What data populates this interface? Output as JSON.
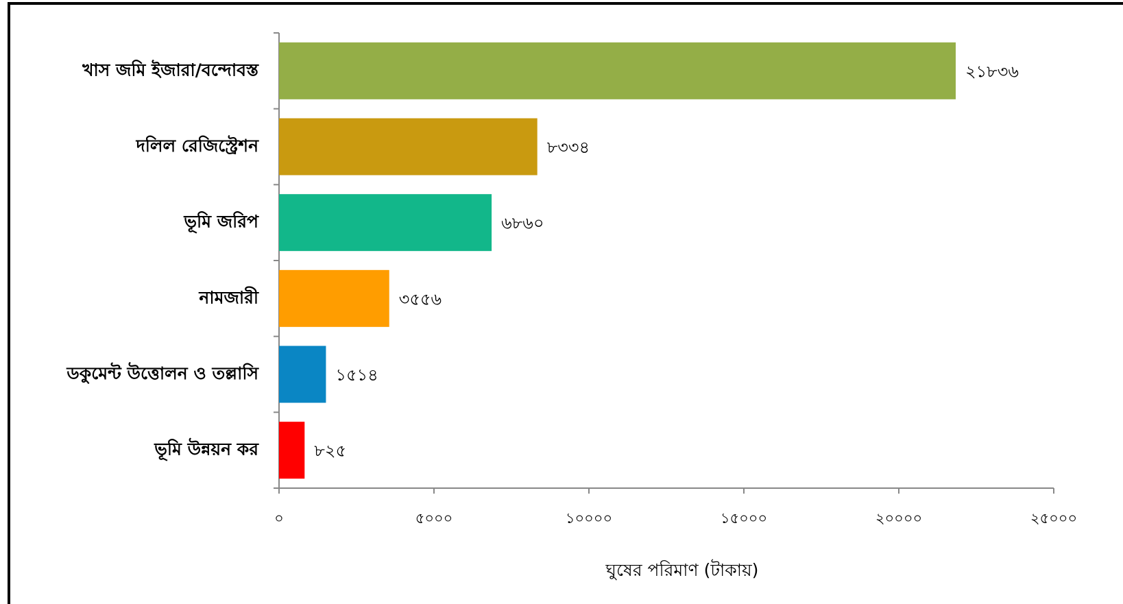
{
  "chart_data": {
    "type": "bar",
    "orientation": "horizontal",
    "categories": [
      "খাস জমি ইজারা/বন্দোবস্ত",
      "দলিল রেজিস্ট্রেশন",
      "ভূমি জরিপ",
      "নামজারী",
      "ডকুমেন্ট উত্তোলন ও তল্লাসি",
      "ভূমি উন্নয়ন কর"
    ],
    "values": [
      21836,
      8334,
      6860,
      3556,
      1514,
      825
    ],
    "value_labels": [
      "২১৮৩৬",
      "৮৩৩৪",
      "৬৮৬০",
      "৩৫৫৬",
      "১৫১৪",
      "৮২৫"
    ],
    "colors": [
      "#94ae47",
      "#c99a10",
      "#12b78a",
      "#ff9d00",
      "#0a86c4",
      "#ff0000"
    ],
    "xlabel": "ঘুষের পরিমাণ (টাকায়)",
    "xlim": [
      0,
      25000
    ],
    "xticks": [
      {
        "value": 0,
        "label": "০"
      },
      {
        "value": 5000,
        "label": "৫০০০"
      },
      {
        "value": 10000,
        "label": "১০০০০"
      },
      {
        "value": 15000,
        "label": "১৫০০০"
      },
      {
        "value": 20000,
        "label": "২০০০০"
      },
      {
        "value": 25000,
        "label": "২৫০০০"
      }
    ]
  }
}
